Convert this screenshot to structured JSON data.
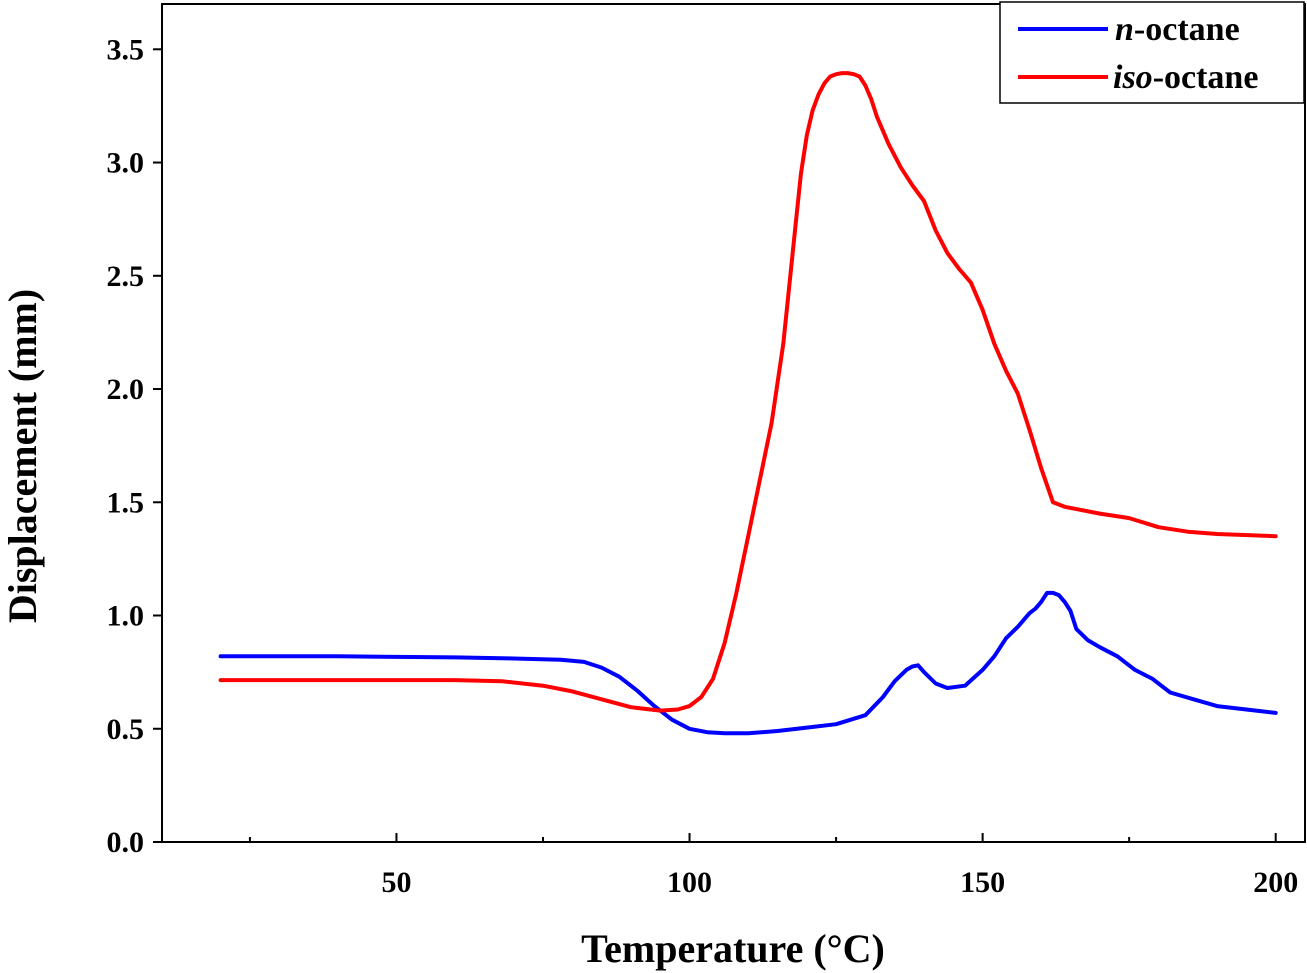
{
  "chart_data": {
    "type": "line",
    "title": "",
    "xlabel": "Temperature (°C)",
    "ylabel": "Displacement (mm)",
    "xlim": [
      10,
      205
    ],
    "ylim": [
      0.0,
      3.7
    ],
    "x_ticks": [
      50,
      100,
      150,
      200
    ],
    "x_tick_labels": [
      "50",
      "100",
      "150",
      "200"
    ],
    "x_minor_ticks": [
      25,
      75,
      125,
      175
    ],
    "y_ticks": [
      0.0,
      0.5,
      1.0,
      1.5,
      2.0,
      2.5,
      3.0,
      3.5
    ],
    "y_tick_labels": [
      "0.0",
      "0.5",
      "1.0",
      "1.5",
      "2.0",
      "2.5",
      "3.0",
      "3.5"
    ],
    "grid": false,
    "legend_position": "top-right",
    "series": [
      {
        "name_prefix": "n",
        "name_suffix": "-octane",
        "color": "#0000ff",
        "x": [
          20,
          40,
          60,
          70,
          78,
          82,
          85,
          88,
          91,
          94,
          97,
          100,
          103,
          106,
          110,
          115,
          120,
          125,
          130,
          133,
          135,
          137,
          138,
          139,
          140,
          142,
          144,
          147,
          150,
          152,
          154,
          156,
          158,
          159,
          160,
          161,
          162,
          163,
          164,
          165,
          166,
          168,
          170,
          173,
          176,
          179,
          182,
          186,
          190,
          195,
          200
        ],
        "y": [
          0.82,
          0.82,
          0.815,
          0.81,
          0.805,
          0.795,
          0.77,
          0.73,
          0.67,
          0.6,
          0.54,
          0.5,
          0.485,
          0.48,
          0.48,
          0.49,
          0.505,
          0.52,
          0.56,
          0.64,
          0.71,
          0.76,
          0.775,
          0.78,
          0.75,
          0.7,
          0.68,
          0.69,
          0.76,
          0.82,
          0.9,
          0.95,
          1.01,
          1.03,
          1.06,
          1.1,
          1.1,
          1.09,
          1.06,
          1.02,
          0.94,
          0.89,
          0.86,
          0.82,
          0.76,
          0.72,
          0.66,
          0.63,
          0.6,
          0.585,
          0.57
        ]
      },
      {
        "name_prefix": "iso",
        "name_suffix": "-octane",
        "color": "#ff0000",
        "x": [
          20,
          40,
          60,
          68,
          75,
          80,
          85,
          90,
          95,
          98,
          100,
          102,
          104,
          106,
          108,
          110,
          112,
          114,
          116,
          118,
          119,
          120,
          121,
          122,
          123,
          124,
          125,
          126,
          127,
          128,
          129,
          130,
          131,
          132,
          134,
          136,
          138,
          140,
          142,
          144,
          146,
          148,
          150,
          152,
          154,
          156,
          158,
          160,
          162,
          164,
          166,
          170,
          175,
          180,
          185,
          190,
          200
        ],
        "y": [
          0.715,
          0.715,
          0.715,
          0.71,
          0.69,
          0.665,
          0.63,
          0.595,
          0.58,
          0.585,
          0.6,
          0.64,
          0.72,
          0.88,
          1.1,
          1.35,
          1.6,
          1.85,
          2.2,
          2.7,
          2.95,
          3.12,
          3.23,
          3.3,
          3.35,
          3.38,
          3.39,
          3.395,
          3.395,
          3.39,
          3.38,
          3.34,
          3.28,
          3.2,
          3.08,
          2.98,
          2.9,
          2.83,
          2.7,
          2.6,
          2.53,
          2.47,
          2.35,
          2.2,
          2.08,
          1.98,
          1.82,
          1.65,
          1.5,
          1.48,
          1.47,
          1.45,
          1.43,
          1.39,
          1.37,
          1.36,
          1.35
        ]
      }
    ]
  }
}
